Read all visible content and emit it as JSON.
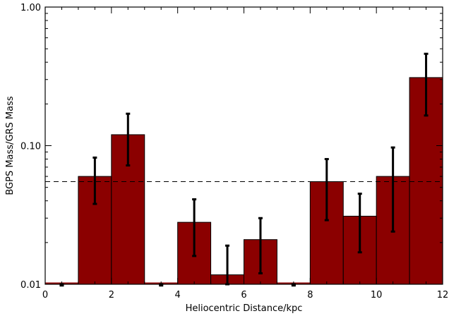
{
  "chart_data": {
    "type": "bar",
    "xlabel": "Heliocentric Distance/kpc",
    "ylabel": "BGPS Mass/GRS Mass",
    "xlim": [
      0,
      12
    ],
    "ylim": [
      0.01,
      1.0
    ],
    "yscale": "log",
    "bar_color": "#8B0000",
    "x_ticks": [
      0,
      2,
      4,
      6,
      8,
      10,
      12
    ],
    "x_tick_labels": [
      "0",
      "2",
      "4",
      "6",
      "8",
      "10",
      "12"
    ],
    "y_ticks": [
      0.01,
      0.1,
      1.0
    ],
    "y_tick_labels": [
      "0.01",
      "0.10",
      "1.00"
    ],
    "reference_line": 0.055,
    "bins": [
      {
        "x0": 0,
        "x1": 1,
        "value": 0.0098,
        "err_low": 0.0098,
        "err_high": 0.0098
      },
      {
        "x0": 1,
        "x1": 2,
        "value": 0.06,
        "err_low": 0.038,
        "err_high": 0.082
      },
      {
        "x0": 2,
        "x1": 3,
        "value": 0.12,
        "err_low": 0.072,
        "err_high": 0.17
      },
      {
        "x0": 3,
        "x1": 4,
        "value": 0.0098,
        "err_low": 0.0098,
        "err_high": 0.0098
      },
      {
        "x0": 4,
        "x1": 5,
        "value": 0.028,
        "err_low": 0.016,
        "err_high": 0.041
      },
      {
        "x0": 5,
        "x1": 6,
        "value": 0.0117,
        "err_low": 0.0095,
        "err_high": 0.019
      },
      {
        "x0": 6,
        "x1": 7,
        "value": 0.021,
        "err_low": 0.012,
        "err_high": 0.03
      },
      {
        "x0": 7,
        "x1": 8,
        "value": 0.0098,
        "err_low": 0.0098,
        "err_high": 0.0098
      },
      {
        "x0": 8,
        "x1": 9,
        "value": 0.055,
        "err_low": 0.029,
        "err_high": 0.08
      },
      {
        "x0": 9,
        "x1": 10,
        "value": 0.031,
        "err_low": 0.017,
        "err_high": 0.045
      },
      {
        "x0": 10,
        "x1": 11,
        "value": 0.06,
        "err_low": 0.024,
        "err_high": 0.097
      },
      {
        "x0": 11,
        "x1": 12,
        "value": 0.31,
        "err_low": 0.165,
        "err_high": 0.46
      }
    ]
  }
}
